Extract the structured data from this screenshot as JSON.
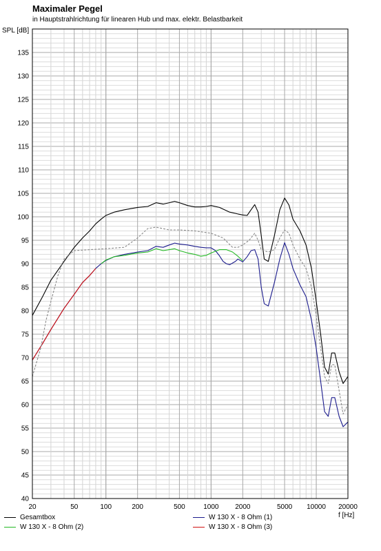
{
  "chart_data": {
    "type": "line",
    "title": "Maximaler Pegel",
    "subtitle": "in Hauptstrahlrichtung für linearen Hub und max. elektr. Belastbarkeit",
    "xlabel": "f [Hz]",
    "ylabel": "SPL [dB]",
    "xscale": "log",
    "xlim": [
      20,
      20000
    ],
    "ylim": [
      40,
      140
    ],
    "grid": true,
    "legend_position": "bottom",
    "x_ticks": [
      20,
      50,
      100,
      200,
      500,
      1000,
      2000,
      5000,
      10000,
      20000
    ],
    "x_tick_labels": [
      "20",
      "50",
      "100",
      "200",
      "500",
      "1000",
      "2000",
      "5000",
      "10000",
      "20000"
    ],
    "y_ticks": [
      40,
      45,
      50,
      55,
      60,
      65,
      70,
      75,
      80,
      85,
      90,
      95,
      100,
      105,
      110,
      115,
      120,
      125,
      130,
      135
    ],
    "y_tick_labels": [
      "40",
      "45",
      "50",
      "55",
      "60",
      "65",
      "70",
      "75",
      "80",
      "85",
      "90",
      "95",
      "100",
      "105",
      "110",
      "115",
      "120",
      "125",
      "130",
      "135"
    ],
    "series": [
      {
        "name": "Gesamtbox",
        "color": "#000000",
        "dash": "solid",
        "points": [
          [
            20,
            79
          ],
          [
            25,
            83
          ],
          [
            30,
            86.5
          ],
          [
            40,
            90.5
          ],
          [
            50,
            93.5
          ],
          [
            60,
            95.5
          ],
          [
            70,
            97
          ],
          [
            80,
            98.5
          ],
          [
            90,
            99.5
          ],
          [
            100,
            100.3
          ],
          [
            120,
            101
          ],
          [
            150,
            101.5
          ],
          [
            200,
            102
          ],
          [
            250,
            102.2
          ],
          [
            300,
            103
          ],
          [
            350,
            102.7
          ],
          [
            400,
            103
          ],
          [
            450,
            103.3
          ],
          [
            500,
            103
          ],
          [
            600,
            102.4
          ],
          [
            700,
            102.1
          ],
          [
            800,
            102.1
          ],
          [
            900,
            102.2
          ],
          [
            1000,
            102.4
          ],
          [
            1200,
            102
          ],
          [
            1500,
            101
          ],
          [
            1800,
            100.6
          ],
          [
            2000,
            100.4
          ],
          [
            2200,
            100.3
          ],
          [
            2400,
            101.5
          ],
          [
            2600,
            102.6
          ],
          [
            2800,
            101
          ],
          [
            3000,
            96
          ],
          [
            3200,
            91
          ],
          [
            3500,
            90.5
          ],
          [
            4000,
            96
          ],
          [
            4500,
            101.5
          ],
          [
            5000,
            104
          ],
          [
            5500,
            102.5
          ],
          [
            6000,
            99.5
          ],
          [
            7000,
            97
          ],
          [
            8000,
            94
          ],
          [
            9000,
            89
          ],
          [
            10000,
            82
          ],
          [
            11000,
            75
          ],
          [
            12000,
            68
          ],
          [
            13000,
            66.5
          ],
          [
            14000,
            71
          ],
          [
            15000,
            71
          ],
          [
            16500,
            67
          ],
          [
            18000,
            64.5
          ],
          [
            20000,
            66
          ]
        ]
      },
      {
        "name": "W 130 X - 8 Ohm (1)",
        "color": "#1a1a8c",
        "dash": "solid",
        "points": [
          [
            20,
            69.5
          ],
          [
            25,
            73
          ],
          [
            30,
            76
          ],
          [
            40,
            80.5
          ],
          [
            50,
            83.5
          ],
          [
            60,
            86
          ],
          [
            70,
            87.5
          ],
          [
            80,
            89
          ],
          [
            90,
            90
          ],
          [
            100,
            90.7
          ],
          [
            120,
            91.5
          ],
          [
            150,
            92
          ],
          [
            200,
            92.5
          ],
          [
            250,
            92.8
          ],
          [
            300,
            93.7
          ],
          [
            350,
            93.5
          ],
          [
            400,
            94
          ],
          [
            450,
            94.4
          ],
          [
            500,
            94.2
          ],
          [
            600,
            94
          ],
          [
            700,
            93.7
          ],
          [
            800,
            93.5
          ],
          [
            900,
            93.4
          ],
          [
            1000,
            93.4
          ],
          [
            1100,
            92.8
          ],
          [
            1200,
            91.7
          ],
          [
            1300,
            90.5
          ],
          [
            1400,
            90
          ],
          [
            1500,
            89.8
          ],
          [
            1700,
            90.5
          ],
          [
            1800,
            91
          ],
          [
            2000,
            90.4
          ],
          [
            2200,
            91.5
          ],
          [
            2400,
            92.8
          ],
          [
            2600,
            93
          ],
          [
            2800,
            91
          ],
          [
            3000,
            85
          ],
          [
            3200,
            81.5
          ],
          [
            3500,
            81
          ],
          [
            4000,
            86
          ],
          [
            4500,
            91
          ],
          [
            5000,
            94.5
          ],
          [
            5500,
            92
          ],
          [
            6000,
            89
          ],
          [
            7000,
            85.5
          ],
          [
            8000,
            83
          ],
          [
            9000,
            78
          ],
          [
            10000,
            72
          ],
          [
            11000,
            65
          ],
          [
            12000,
            58.5
          ],
          [
            13000,
            57.5
          ],
          [
            14000,
            61.5
          ],
          [
            15000,
            61.5
          ],
          [
            16500,
            57.5
          ],
          [
            18000,
            55.3
          ],
          [
            20000,
            56.3
          ]
        ]
      },
      {
        "name": "W 130 X - 8 Ohm (2)",
        "color": "#22b822",
        "dash": "solid",
        "points": [
          [
            90,
            90
          ],
          [
            100,
            90.8
          ],
          [
            120,
            91.5
          ],
          [
            150,
            91.8
          ],
          [
            200,
            92.3
          ],
          [
            250,
            92.5
          ],
          [
            300,
            93.2
          ],
          [
            350,
            92.8
          ],
          [
            400,
            93
          ],
          [
            450,
            93.2
          ],
          [
            500,
            92.8
          ],
          [
            600,
            92.3
          ],
          [
            700,
            92
          ],
          [
            800,
            91.6
          ],
          [
            900,
            91.8
          ],
          [
            1000,
            92.3
          ],
          [
            1200,
            93
          ],
          [
            1400,
            93
          ],
          [
            1600,
            92.5
          ],
          [
            1800,
            91.6
          ],
          [
            2000,
            90.6
          ]
        ]
      },
      {
        "name": "W 130 X - 8 Ohm (3)",
        "color": "#d01010",
        "dash": "solid",
        "points": [
          [
            20,
            69.5
          ],
          [
            25,
            73
          ],
          [
            30,
            76
          ],
          [
            40,
            80.5
          ],
          [
            50,
            83.5
          ],
          [
            60,
            86
          ],
          [
            70,
            87.5
          ],
          [
            80,
            89
          ]
        ]
      },
      {
        "name": "",
        "color": "#888888",
        "dash": "dashed",
        "points": [
          [
            20,
            66
          ],
          [
            24,
            72
          ],
          [
            27,
            78
          ],
          [
            30,
            82
          ],
          [
            35,
            87.5
          ],
          [
            40,
            91
          ],
          [
            50,
            92.8
          ],
          [
            70,
            93
          ],
          [
            100,
            93.2
          ],
          [
            150,
            93.5
          ],
          [
            200,
            95.5
          ],
          [
            250,
            97.5
          ],
          [
            300,
            97.8
          ],
          [
            400,
            97.2
          ],
          [
            500,
            97.2
          ],
          [
            700,
            97
          ],
          [
            1000,
            96.5
          ],
          [
            1300,
            95.5
          ],
          [
            1600,
            93.5
          ],
          [
            1800,
            93.5
          ],
          [
            2000,
            94
          ],
          [
            2300,
            95
          ],
          [
            2600,
            96.5
          ],
          [
            2800,
            95
          ],
          [
            3000,
            93
          ],
          [
            3500,
            92.5
          ],
          [
            4000,
            93
          ],
          [
            4500,
            95.5
          ],
          [
            5000,
            97.2
          ],
          [
            5500,
            96.5
          ],
          [
            6000,
            94
          ],
          [
            7000,
            91
          ],
          [
            8000,
            89
          ],
          [
            9000,
            85
          ],
          [
            10000,
            79
          ],
          [
            11000,
            72
          ],
          [
            12000,
            66
          ],
          [
            13000,
            64.5
          ],
          [
            14000,
            68.5
          ],
          [
            15000,
            68.5
          ],
          [
            16500,
            63
          ],
          [
            18000,
            58
          ],
          [
            20000,
            60
          ]
        ]
      }
    ]
  }
}
